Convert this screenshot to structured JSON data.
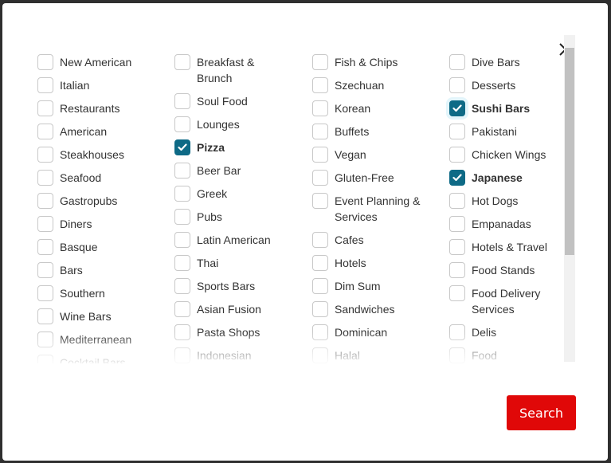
{
  "columns": [
    [
      {
        "label": "New American",
        "checked": false
      },
      {
        "label": "Italian",
        "checked": false
      },
      {
        "label": "Restaurants",
        "checked": false
      },
      {
        "label": "American",
        "checked": false
      },
      {
        "label": "Steakhouses",
        "checked": false
      },
      {
        "label": "Seafood",
        "checked": false
      },
      {
        "label": "Gastropubs",
        "checked": false
      },
      {
        "label": "Diners",
        "checked": false
      },
      {
        "label": "Basque",
        "checked": false
      },
      {
        "label": "Bars",
        "checked": false
      },
      {
        "label": "Southern",
        "checked": false
      },
      {
        "label": "Wine Bars",
        "checked": false
      },
      {
        "label": "Mediterranean",
        "checked": false
      },
      {
        "label": "Cocktail Bars",
        "checked": false
      }
    ],
    [
      {
        "label": "Breakfast & Brunch",
        "checked": false
      },
      {
        "label": "Soul Food",
        "checked": false
      },
      {
        "label": "Lounges",
        "checked": false
      },
      {
        "label": "Pizza",
        "checked": true
      },
      {
        "label": "Beer Bar",
        "checked": false
      },
      {
        "label": "Greek",
        "checked": false
      },
      {
        "label": "Pubs",
        "checked": false
      },
      {
        "label": "Latin American",
        "checked": false
      },
      {
        "label": "Thai",
        "checked": false
      },
      {
        "label": "Sports Bars",
        "checked": false
      },
      {
        "label": "Asian Fusion",
        "checked": false
      },
      {
        "label": "Pasta Shops",
        "checked": false
      },
      {
        "label": "Indonesian",
        "checked": false
      }
    ],
    [
      {
        "label": "Fish & Chips",
        "checked": false
      },
      {
        "label": "Szechuan",
        "checked": false
      },
      {
        "label": "Korean",
        "checked": false
      },
      {
        "label": "Buffets",
        "checked": false
      },
      {
        "label": "Vegan",
        "checked": false
      },
      {
        "label": "Gluten-Free",
        "checked": false
      },
      {
        "label": "Event Planning & Services",
        "checked": false
      },
      {
        "label": "Cafes",
        "checked": false
      },
      {
        "label": "Hotels",
        "checked": false
      },
      {
        "label": "Dim Sum",
        "checked": false
      },
      {
        "label": "Sandwiches",
        "checked": false
      },
      {
        "label": "Dominican",
        "checked": false
      },
      {
        "label": "Halal",
        "checked": false
      }
    ],
    [
      {
        "label": "Dive Bars",
        "checked": false
      },
      {
        "label": "Desserts",
        "checked": false
      },
      {
        "label": "Sushi Bars",
        "checked": true,
        "focused": true
      },
      {
        "label": "Pakistani",
        "checked": false
      },
      {
        "label": "Chicken Wings",
        "checked": false
      },
      {
        "label": "Japanese",
        "checked": true
      },
      {
        "label": "Hot Dogs",
        "checked": false
      },
      {
        "label": "Empanadas",
        "checked": false
      },
      {
        "label": "Hotels & Travel",
        "checked": false
      },
      {
        "label": "Food Stands",
        "checked": false
      },
      {
        "label": "Food Delivery Services",
        "checked": false
      },
      {
        "label": "Delis",
        "checked": false
      },
      {
        "label": "Food",
        "checked": false
      }
    ]
  ],
  "search_label": "Search",
  "icons": {
    "close": "close-icon",
    "check": "check-icon"
  },
  "colors": {
    "checked": "#0e6a86",
    "search_button": "#e00808"
  }
}
